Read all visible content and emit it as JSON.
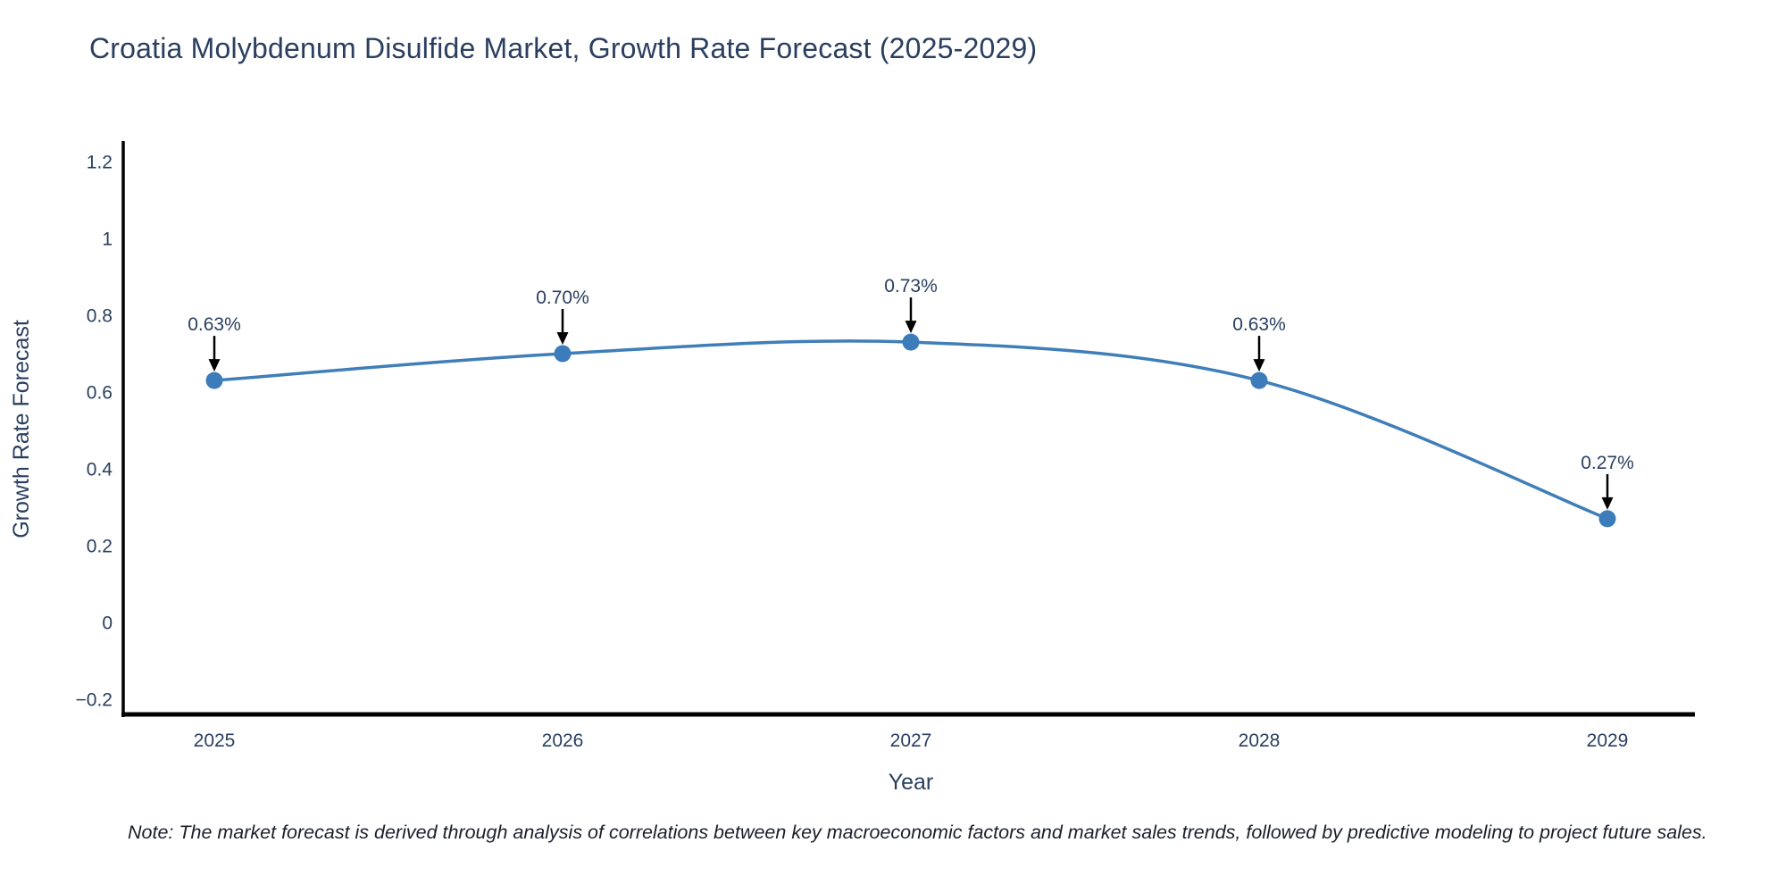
{
  "title": "Croatia Molybdenum Disulfide Market, Growth Rate Forecast (2025-2029)",
  "note": "Note: The market forecast is derived through analysis of correlations between key macroeconomic factors and market sales trends, followed by predictive modeling to project future sales.",
  "colors": {
    "background": "#ffffff",
    "title_text": "#2a3f5f",
    "tick_text": "#2a3f5f",
    "axis_title_text": "#2a3f5f",
    "annotation_text": "#2a3f5f",
    "axis_line": "#000000",
    "arrow": "#000000",
    "note_text": "#1a1f2b",
    "line": "#3f7eb8",
    "marker": "#3d7cba"
  },
  "chart_data": {
    "type": "line",
    "title": "Croatia Molybdenum Disulfide Market, Growth Rate Forecast (2025-2029)",
    "categories": [
      "2025",
      "2026",
      "2027",
      "2028",
      "2029"
    ],
    "series": [
      {
        "name": "Growth Rate Forecast",
        "values": [
          0.63,
          0.7,
          0.73,
          0.63,
          0.27
        ]
      }
    ],
    "point_labels": [
      "0.63%",
      "0.70%",
      "0.73%",
      "0.63%",
      "0.27%"
    ],
    "xlabel": "Year",
    "ylabel": "Growth Rate Forecast",
    "ylim": [
      -0.2,
      1.2
    ],
    "yticks": [
      1.2,
      1,
      0.8,
      0.6,
      0.4,
      0.2,
      0,
      -0.2
    ],
    "ytick_labels": [
      "1.2",
      "1",
      "0.8",
      "0.6",
      "0.4",
      "0.2",
      "0",
      "−0.2"
    ],
    "grid": false,
    "legend": "none",
    "line_shape": "spline",
    "marker": "circle",
    "annotation_arrows": true
  }
}
